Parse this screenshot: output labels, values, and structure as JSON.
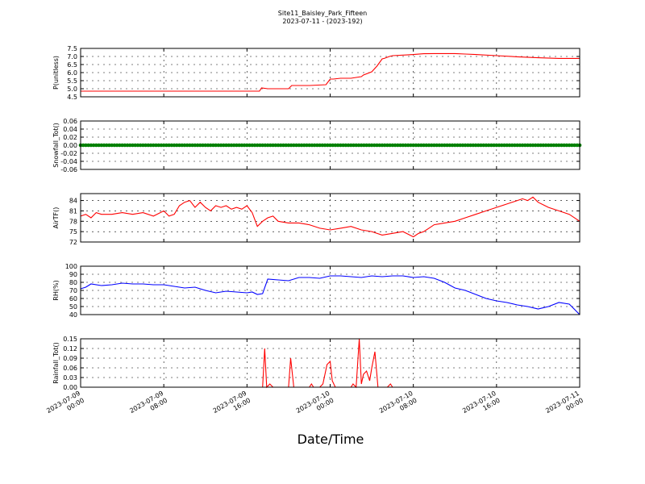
{
  "title": "Site11_Baisley_Park_Fifteen",
  "subtitle": "2023-07-11 - (2023-192)",
  "xlabel": "Date/Time",
  "x_ticks": [
    "2023-07-09\n00:00",
    "2023-07-09\n08:00",
    "2023-07-09\n16:00",
    "2023-07-10\n00:00",
    "2023-07-10\n08:00",
    "2023-07-10\n16:00",
    "2023-07-11\n00:00"
  ],
  "chart_data": [
    {
      "type": "line",
      "ylabel": "P(unitless)",
      "ylim": [
        4.5,
        7.5
      ],
      "yticks": [
        "4.5",
        "5.0",
        "5.5",
        "6.0",
        "6.5",
        "7.0",
        "7.5"
      ],
      "grid": true,
      "x_hours": [
        0,
        8,
        16,
        17.2,
        17.4,
        18,
        20,
        20.3,
        22,
        23.6,
        24,
        24.3,
        25,
        26,
        27,
        27.2,
        28,
        28.5,
        29,
        29.2,
        29.7,
        30,
        32,
        33,
        34,
        35,
        36,
        37,
        38,
        40,
        42,
        44,
        46,
        48
      ],
      "y": [
        4.85,
        4.85,
        4.85,
        4.85,
        5.05,
        5.0,
        5.0,
        5.2,
        5.2,
        5.25,
        5.6,
        5.6,
        5.65,
        5.65,
        5.75,
        5.85,
        6.05,
        6.4,
        6.85,
        6.88,
        7.0,
        7.05,
        7.12,
        7.17,
        7.18,
        7.18,
        7.18,
        7.15,
        7.12,
        7.05,
        6.98,
        6.92,
        6.88,
        6.88
      ]
    },
    {
      "type": "scatter",
      "ylabel": "Snowfall_Tot()",
      "ylim": [
        -0.06,
        0.06
      ],
      "yticks": [
        "-0.06",
        "-0.04",
        "-0.02",
        "0.00",
        "0.02",
        "0.04",
        "0.06"
      ],
      "grid": true,
      "x_range_hours": [
        0,
        48
      ],
      "constant_value": 0.0
    },
    {
      "type": "line",
      "ylabel": "AirTF()",
      "ylim": [
        72,
        86
      ],
      "yticks": [
        "72",
        "75",
        "78",
        "81",
        "84"
      ],
      "grid": true,
      "x_hours": [
        0,
        0.5,
        1,
        1.5,
        2,
        3,
        4,
        5,
        6,
        7,
        8,
        8.5,
        9,
        9.5,
        10,
        10.5,
        11,
        11.5,
        12,
        12.5,
        13,
        13.5,
        14,
        14.5,
        15,
        15.5,
        16,
        16.5,
        17,
        17.5,
        18,
        18.5,
        19,
        20,
        21,
        22,
        23,
        24,
        25,
        26,
        27,
        28,
        29,
        30,
        31,
        32,
        32.5,
        33,
        33.5,
        34,
        35,
        36,
        37,
        38,
        39,
        40,
        41,
        42,
        42.5,
        43,
        43.5,
        44,
        45,
        46,
        47,
        48
      ],
      "y": [
        79.5,
        80,
        79,
        80.5,
        80,
        80,
        80.5,
        80,
        80.5,
        79.5,
        81,
        79.5,
        80,
        82.5,
        83.5,
        84,
        82,
        83.5,
        82,
        81,
        82.5,
        82,
        82.5,
        81.5,
        82,
        81.5,
        82.5,
        80.5,
        76.5,
        78,
        79,
        79.5,
        78,
        77.5,
        77.5,
        77,
        76,
        75.5,
        76,
        76.5,
        75.5,
        75,
        74,
        74.5,
        75,
        73.5,
        74.5,
        75,
        76,
        77,
        77.5,
        78,
        79,
        80,
        81,
        82,
        83,
        84,
        84.5,
        84,
        85,
        83.5,
        82,
        81,
        80,
        78
      ]
    },
    {
      "type": "line",
      "ylabel": "RH(%)",
      "ylim": [
        40,
        100
      ],
      "yticks": [
        "40",
        "50",
        "60",
        "70",
        "80",
        "90",
        "100"
      ],
      "grid": true,
      "x_hours": [
        0,
        0.5,
        1,
        2,
        3,
        4,
        5,
        6,
        7,
        8,
        9,
        10,
        11,
        12,
        13,
        14,
        15,
        16,
        16.5,
        17,
        17.5,
        18,
        19,
        20,
        21,
        22,
        23,
        24,
        25,
        26,
        27,
        28,
        29,
        30,
        31,
        32,
        33,
        34,
        35,
        36,
        37,
        38,
        39,
        40,
        41,
        42,
        43,
        44,
        45,
        46,
        47,
        48
      ],
      "y": [
        72,
        74,
        78,
        76,
        77,
        79,
        78,
        78,
        77,
        77,
        75,
        73,
        74,
        70,
        67,
        69,
        68,
        67,
        68,
        65,
        66,
        84,
        83,
        82,
        86,
        86,
        85,
        88,
        88,
        87,
        86,
        88,
        87,
        88,
        88,
        86,
        87,
        85,
        80,
        73,
        70,
        65,
        60,
        57,
        55,
        52,
        50,
        47,
        50,
        55,
        53,
        40
      ]
    },
    {
      "type": "line",
      "ylabel": "Rainfall_Tot()",
      "ylim": [
        0,
        0.15
      ],
      "yticks": [
        "0.00",
        "0.03",
        "0.06",
        "0.09",
        "0.12",
        "0.15"
      ],
      "grid": true,
      "x_hours": [
        0,
        17.5,
        17.7,
        17.9,
        18.2,
        18.5,
        20,
        20.2,
        20.5,
        22,
        22.2,
        22.4,
        23,
        23.3,
        23.7,
        24,
        24.2,
        24.5,
        25,
        26,
        26.2,
        26.5,
        26.8,
        27,
        27.2,
        27.5,
        27.8,
        28,
        28.3,
        28.6,
        28.8,
        29,
        29.5,
        29.8,
        30,
        30.2,
        31,
        48
      ],
      "y": [
        0,
        0,
        0.12,
        0,
        0.01,
        0,
        0,
        0.09,
        0,
        0,
        0.01,
        0,
        0,
        0.01,
        0.07,
        0.08,
        0.02,
        0,
        0,
        0,
        0.01,
        0,
        0.15,
        0.01,
        0.04,
        0.05,
        0.02,
        0.06,
        0.11,
        0,
        0,
        0,
        0,
        0.01,
        0,
        0,
        0,
        0
      ]
    }
  ]
}
